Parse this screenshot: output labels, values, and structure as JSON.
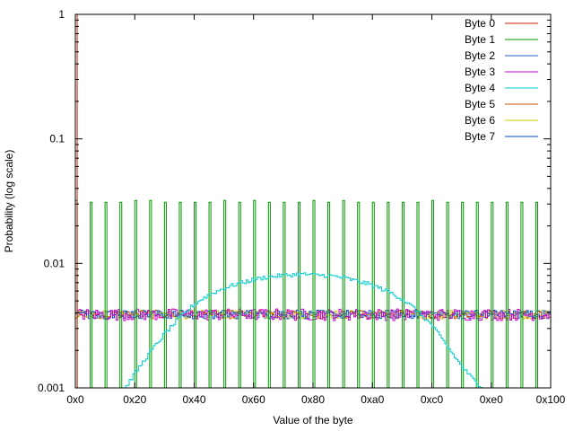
{
  "chart_data": {
    "type": "line",
    "title": "",
    "xlabel": "Value of the byte",
    "ylabel": "Probability (log scale)",
    "y_scale": "log",
    "xlim": [
      0,
      256
    ],
    "ylim": [
      0.001,
      1
    ],
    "x_ticks": [
      {
        "value": 0,
        "label": "0x0"
      },
      {
        "value": 32,
        "label": "0x20"
      },
      {
        "value": 64,
        "label": "0x40"
      },
      {
        "value": 96,
        "label": "0x60"
      },
      {
        "value": 128,
        "label": "0x80"
      },
      {
        "value": 160,
        "label": "0xa0"
      },
      {
        "value": 192,
        "label": "0xc0"
      },
      {
        "value": 224,
        "label": "0xe0"
      },
      {
        "value": 256,
        "label": "0x100"
      }
    ],
    "y_ticks": [
      {
        "value": 1,
        "label": "1"
      },
      {
        "value": 0.1,
        "label": "0.1"
      },
      {
        "value": 0.01,
        "label": "0.01"
      },
      {
        "value": 0.001,
        "label": "0.001"
      }
    ],
    "grid": false,
    "legend_position": "top-right",
    "series": [
      {
        "name": "Byte 0",
        "color": "#cc2200",
        "style": "steps",
        "points": [
          [
            0,
            1
          ],
          [
            1,
            0.001
          ]
        ]
      },
      {
        "name": "Byte 1",
        "color": "#009900",
        "style": "spikes",
        "note_visible": "values 0x00,0x08,...,0xf8 only",
        "x": [
          0,
          8,
          16,
          24,
          32,
          40,
          48,
          56,
          64,
          72,
          80,
          88,
          96,
          104,
          112,
          120,
          128,
          136,
          144,
          152,
          160,
          168,
          176,
          184,
          192,
          200,
          208,
          216,
          224,
          232,
          240,
          248
        ],
        "values": [
          0.032,
          0.031,
          0.031,
          0.031,
          0.032,
          0.032,
          0.031,
          0.031,
          0.031,
          0.031,
          0.032,
          0.031,
          0.032,
          0.031,
          0.031,
          0.031,
          0.032,
          0.031,
          0.032,
          0.031,
          0.031,
          0.031,
          0.031,
          0.031,
          0.032,
          0.031,
          0.031,
          0.031,
          0.031,
          0.031,
          0.031,
          0.031
        ]
      },
      {
        "name": "Byte 2",
        "color": "#2266cc",
        "style": "steps",
        "mean": 0.0039
      },
      {
        "name": "Byte 3",
        "color": "#cc00cc",
        "style": "steps",
        "mean": 0.0039
      },
      {
        "name": "Byte 4",
        "color": "#00cccc",
        "style": "steps",
        "x": [
          27,
          32,
          40,
          48,
          56,
          64,
          72,
          80,
          88,
          96,
          104,
          112,
          120,
          128,
          136,
          144,
          152,
          160,
          168,
          176,
          184,
          192,
          200,
          208,
          216,
          221
        ],
        "values": [
          0.001,
          0.0013,
          0.0019,
          0.0027,
          0.0036,
          0.0047,
          0.0056,
          0.0063,
          0.0069,
          0.0074,
          0.0078,
          0.008,
          0.0082,
          0.0081,
          0.008,
          0.0077,
          0.0072,
          0.0067,
          0.006,
          0.0052,
          0.0042,
          0.0032,
          0.0022,
          0.0015,
          0.0011,
          0.001
        ]
      },
      {
        "name": "Byte 5",
        "color": "#cc5500",
        "style": "steps",
        "mean": 0.0039
      },
      {
        "name": "Byte 6",
        "color": "#cccc00",
        "style": "steps",
        "mean": 0.0039
      },
      {
        "name": "Byte 7",
        "color": "#0044cc",
        "style": "steps",
        "mean": 0.0039
      }
    ]
  }
}
